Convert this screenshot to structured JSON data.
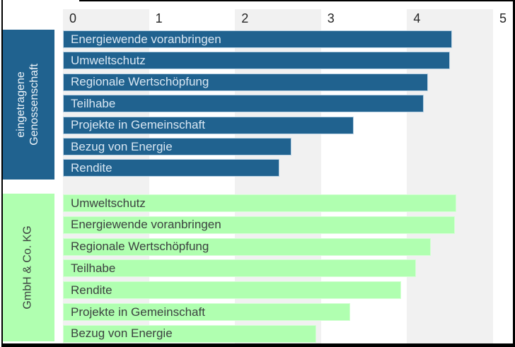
{
  "chart_data": {
    "type": "bar",
    "orientation": "horizontal",
    "title": "",
    "xlabel": "",
    "ylabel": "",
    "xlim": [
      0,
      5
    ],
    "x_ticks": [
      "0",
      "1",
      "2",
      "3",
      "4",
      "5"
    ],
    "grid": "alternating-vertical-bands",
    "legend_position": "none",
    "band_color": "#f1f1f1",
    "axis_text_color": "#262626",
    "frame_color": "#000000",
    "groups": [
      {
        "name": "eingetragene Genossenschaft",
        "name_lines": [
          "eingetragene",
          "Genossenschaft"
        ],
        "bar_color": "#20628f",
        "bar_border_color": "#b9d2e4",
        "bar_text_color": "#d9e7f3",
        "block_color": "#20628f",
        "block_text_color": "#eef4f9",
        "items": [
          {
            "label": "Energiewende voranbringen",
            "value": 4.52
          },
          {
            "label": "Umweltschutz",
            "value": 4.5
          },
          {
            "label": "Regionale Wertschöpfung",
            "value": 4.24
          },
          {
            "label": "Teilhabe",
            "value": 4.19
          },
          {
            "label": "Projekte in Gemeinschaft",
            "value": 3.38
          },
          {
            "label": "Bezug von Energie",
            "value": 2.66
          },
          {
            "label": "Rendite",
            "value": 2.52
          }
        ]
      },
      {
        "name": "GmbH & Co. KG",
        "name_lines": [
          "GmbH & Co. KG"
        ],
        "bar_color": "#b0ffb0",
        "bar_border_color": "#d4ffd4",
        "bar_text_color": "#3c4240",
        "block_color": "#b0ffb0",
        "block_text_color": "#3c4240",
        "items": [
          {
            "label": "Umweltschutz",
            "value": 4.57
          },
          {
            "label": "Energiewende voranbringen",
            "value": 4.56
          },
          {
            "label": "Regionale Wertschöpfung",
            "value": 4.28
          },
          {
            "label": "Teilhabe",
            "value": 4.1
          },
          {
            "label": "Rendite",
            "value": 3.93
          },
          {
            "label": "Projekte in Gemeinschaft",
            "value": 3.34
          },
          {
            "label": "Bezug von Energie",
            "value": 2.94
          }
        ]
      }
    ]
  }
}
